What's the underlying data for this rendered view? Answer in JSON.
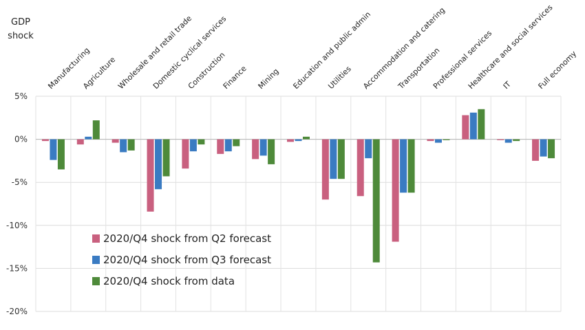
{
  "chart_data": {
    "type": "bar",
    "title": "",
    "ylabel": [
      "GDP",
      "shock"
    ],
    "xlabel": "",
    "ylim": [
      -20,
      5
    ],
    "yticks": [
      5,
      0,
      -5,
      -10,
      -15,
      -20
    ],
    "ytick_labels": [
      "5%",
      "0%",
      "-5%",
      "-10%",
      "-15%",
      "-20%"
    ],
    "grid": true,
    "legend_position": "lower-left",
    "categories": [
      "Manufacturing",
      "Agriculture",
      "Wholesale and retail trade",
      "Domestic cyclical services",
      "Construction",
      "Finance",
      "Mining",
      "Education and public admin",
      "Utilities",
      "Accommodation and catering",
      "Transportation",
      "Professional services",
      "Healthcare and social services",
      "IT",
      "Full economy"
    ],
    "series": [
      {
        "name": "2020/Q4 shock from Q2 forecast",
        "color": "#c9607f",
        "values": [
          -0.2,
          -0.6,
          -0.4,
          -8.4,
          -3.4,
          -1.7,
          -2.3,
          -0.3,
          -7.0,
          -6.6,
          -11.9,
          -0.2,
          2.8,
          -0.1,
          -2.5
        ]
      },
      {
        "name": "2020/Q4 shock from Q3 forecast",
        "color": "#3a7bc2",
        "values": [
          -2.4,
          0.3,
          -1.5,
          -5.8,
          -1.4,
          -1.4,
          -1.9,
          -0.2,
          -4.6,
          -2.2,
          -6.2,
          -0.4,
          3.1,
          -0.4,
          -2.0
        ]
      },
      {
        "name": "2020/Q4 shock from data",
        "color": "#4e8a3a",
        "values": [
          -3.5,
          2.2,
          -1.3,
          -4.3,
          -0.6,
          -0.8,
          -2.9,
          0.3,
          -4.6,
          -14.3,
          -6.2,
          -0.1,
          3.5,
          -0.2,
          -2.2
        ]
      }
    ]
  }
}
